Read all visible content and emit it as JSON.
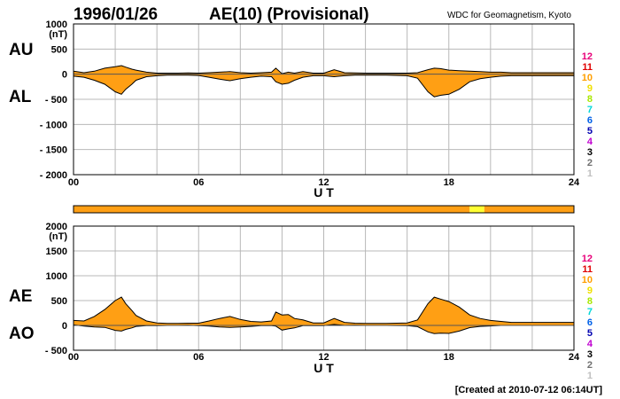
{
  "header": {
    "date": "1996/01/26",
    "title": "AE(10) (Provisional)",
    "source": "WDC for Geomagnetism, Kyoto"
  },
  "footer": {
    "created": "[Created at 2010-07-12 06:14UT]"
  },
  "colors": {
    "fill": "#ff9f14",
    "fill_high": "#ffff33",
    "grid": "#b8b8b8",
    "bar": "#ff9f14"
  },
  "scale_levels": {
    "labels": [
      "12",
      "11",
      "10",
      "9",
      "8",
      "7",
      "6",
      "5",
      "4",
      "3",
      "2",
      "1"
    ],
    "colors": [
      "#e8007a",
      "#e00000",
      "#ff9f00",
      "#f0e000",
      "#a8e800",
      "#00d8d8",
      "#0060e8",
      "#0000b0",
      "#c000d0",
      "#000000",
      "#707070",
      "#c0c0c0"
    ]
  },
  "chart_data": [
    {
      "type": "area",
      "title": "AU / AL",
      "labels_left": [
        "AU",
        "AL"
      ],
      "unit": "(nT)",
      "xlabel": "U T",
      "x_ticks": [
        "00",
        "06",
        "12",
        "18",
        "24"
      ],
      "xlim": [
        0,
        24
      ],
      "ylim": [
        -2000,
        1000
      ],
      "y_ticks": [
        "1000",
        "500",
        "0",
        "- 500",
        "- 1000",
        "- 1500",
        "- 2000"
      ],
      "grid": true,
      "series": [
        {
          "name": "AU",
          "x": [
            0,
            0.5,
            1,
            1.5,
            2,
            2.3,
            2.5,
            2.8,
            3,
            3.5,
            4,
            4.5,
            5,
            5.5,
            6,
            6.5,
            7,
            7.5,
            8,
            8.5,
            9,
            9.5,
            9.7,
            10,
            10.3,
            10.6,
            11,
            11.5,
            12,
            12.5,
            13,
            13.5,
            14,
            15,
            16,
            16.5,
            17,
            17.3,
            17.6,
            18,
            18.5,
            19,
            19.5,
            20,
            20.5,
            21,
            22,
            23,
            24
          ],
          "values": [
            60,
            30,
            60,
            120,
            150,
            170,
            140,
            100,
            80,
            40,
            20,
            20,
            20,
            25,
            20,
            30,
            40,
            50,
            30,
            20,
            30,
            40,
            120,
            10,
            40,
            20,
            50,
            20,
            20,
            90,
            30,
            25,
            20,
            20,
            20,
            30,
            90,
            120,
            110,
            80,
            70,
            60,
            50,
            40,
            40,
            30,
            30,
            30,
            30
          ]
        },
        {
          "name": "AL",
          "x": [
            0,
            0.5,
            1,
            1.5,
            2,
            2.3,
            2.5,
            2.8,
            3,
            3.5,
            4,
            4.5,
            5,
            5.5,
            6,
            6.5,
            7,
            7.5,
            8,
            8.5,
            9,
            9.5,
            9.7,
            10,
            10.3,
            10.6,
            11,
            11.5,
            12,
            12.5,
            13,
            13.5,
            14,
            15,
            16,
            16.5,
            17,
            17.3,
            17.6,
            18,
            18.5,
            19,
            19.5,
            20,
            20.5,
            21,
            22,
            23,
            24
          ],
          "values": [
            -40,
            -60,
            -120,
            -200,
            -350,
            -400,
            -300,
            -200,
            -120,
            -50,
            -30,
            -20,
            -20,
            -20,
            -25,
            -60,
            -100,
            -130,
            -90,
            -60,
            -40,
            -50,
            -150,
            -200,
            -180,
            -120,
            -60,
            -30,
            -30,
            -50,
            -30,
            -20,
            -20,
            -20,
            -30,
            -80,
            -350,
            -450,
            -420,
            -400,
            -300,
            -150,
            -90,
            -60,
            -40,
            -30,
            -30,
            -30,
            -30
          ]
        }
      ]
    },
    {
      "type": "area",
      "title": "AE / AO",
      "labels_left": [
        "AE",
        "AO"
      ],
      "unit": "(nT)",
      "xlabel": "U T",
      "x_ticks": [
        "00",
        "06",
        "12",
        "18",
        "24"
      ],
      "xlim": [
        0,
        24
      ],
      "ylim": [
        -500,
        2000
      ],
      "y_ticks": [
        "2000",
        "1500",
        "1000",
        "500",
        "0",
        "- 500"
      ],
      "grid": true,
      "series": [
        {
          "name": "AE",
          "x": [
            0,
            0.5,
            1,
            1.5,
            2,
            2.3,
            2.5,
            2.8,
            3,
            3.5,
            4,
            4.5,
            5,
            5.5,
            6,
            6.5,
            7,
            7.5,
            8,
            8.5,
            9,
            9.5,
            9.7,
            10,
            10.3,
            10.6,
            11,
            11.5,
            12,
            12.5,
            13,
            13.5,
            14,
            15,
            16,
            16.5,
            17,
            17.3,
            17.6,
            18,
            18.5,
            19,
            19.5,
            20,
            20.5,
            21,
            22,
            23,
            24
          ],
          "values": [
            100,
            90,
            180,
            320,
            500,
            570,
            440,
            300,
            200,
            90,
            50,
            40,
            40,
            45,
            45,
            90,
            140,
            180,
            120,
            80,
            70,
            90,
            270,
            210,
            220,
            140,
            110,
            50,
            50,
            140,
            60,
            45,
            40,
            40,
            50,
            110,
            440,
            570,
            530,
            480,
            370,
            210,
            140,
            100,
            80,
            60,
            60,
            60,
            60
          ]
        },
        {
          "name": "AO",
          "x": [
            0,
            0.5,
            1,
            1.5,
            2,
            2.3,
            2.5,
            2.8,
            3,
            3.5,
            4,
            4.5,
            5,
            5.5,
            6,
            6.5,
            7,
            7.5,
            8,
            8.5,
            9,
            9.5,
            9.7,
            10,
            10.3,
            10.6,
            11,
            11.5,
            12,
            12.5,
            13,
            13.5,
            14,
            15,
            16,
            16.5,
            17,
            17.3,
            17.6,
            18,
            18.5,
            19,
            19.5,
            20,
            20.5,
            21,
            22,
            23,
            24
          ],
          "values": [
            10,
            -15,
            -30,
            -40,
            -100,
            -115,
            -80,
            -50,
            -20,
            -5,
            -5,
            0,
            0,
            3,
            -3,
            -15,
            -30,
            -40,
            -30,
            -20,
            -5,
            -5,
            -15,
            -95,
            -70,
            -50,
            -5,
            -5,
            -5,
            20,
            0,
            3,
            0,
            0,
            -5,
            -25,
            -130,
            -165,
            -155,
            -160,
            -115,
            -45,
            -20,
            -10,
            0,
            0,
            0,
            0,
            0
          ]
        }
      ]
    }
  ],
  "level_bar": {
    "segments": [
      {
        "from": 0,
        "to": 19.0,
        "level": "10"
      },
      {
        "from": 19.0,
        "to": 19.7,
        "level": "9"
      },
      {
        "from": 19.7,
        "to": 24,
        "level": "10"
      }
    ]
  }
}
